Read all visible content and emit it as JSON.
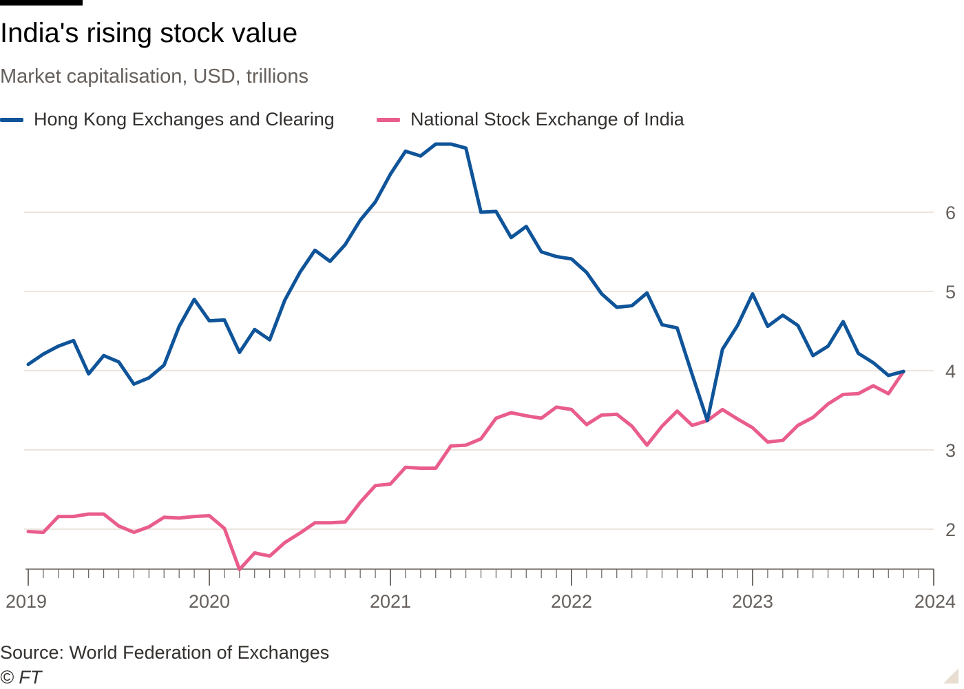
{
  "header": {
    "title": "India's rising stock value",
    "subtitle": "Market capitalisation, USD, trillions"
  },
  "footer": {
    "source": "Source: World Federation of Exchanges",
    "credit": "© FT"
  },
  "colors": {
    "hong_kong": "#0f5499",
    "india": "#e95d8c",
    "grid": "#e6dcd3",
    "axis": "#66605c",
    "text": "#33302e"
  },
  "chart_data": {
    "type": "line",
    "title": "India's rising stock value",
    "subtitle": "Market capitalisation, USD, trillions",
    "xlabel": "",
    "ylabel": "",
    "x_ticks": [
      "2019",
      "2020",
      "2021",
      "2022",
      "2023",
      "2024"
    ],
    "xlim": [
      2019.0,
      2024.0
    ],
    "ylim": [
      1.5,
      6.9
    ],
    "y_ticks": [
      2,
      3,
      4,
      5,
      6
    ],
    "y_tick_labels": [
      "2",
      "3",
      "4",
      "5",
      "6"
    ],
    "y_axis_side": "right",
    "grid": true,
    "legend_position": "top-left",
    "frequency": "monthly",
    "x_start": "2019-01",
    "series": [
      {
        "name": "Hong Kong Exchanges and Clearing",
        "color": "#0f5499",
        "values": [
          4.08,
          4.21,
          4.31,
          4.38,
          3.96,
          4.19,
          4.11,
          3.83,
          3.91,
          4.07,
          4.56,
          4.9,
          4.63,
          4.64,
          4.23,
          4.52,
          4.39,
          4.89,
          5.24,
          5.52,
          5.38,
          5.59,
          5.9,
          6.13,
          6.48,
          6.77,
          6.71,
          6.86,
          6.86,
          6.81,
          6.0,
          6.01,
          5.68,
          5.82,
          5.5,
          5.44,
          5.41,
          5.24,
          4.97,
          4.8,
          4.82,
          4.98,
          4.58,
          4.54,
          3.95,
          3.37,
          4.27,
          4.57,
          4.97,
          4.56,
          4.7,
          4.57,
          4.19,
          4.31,
          4.62,
          4.22,
          4.1,
          3.94,
          3.99
        ]
      },
      {
        "name": "National Stock Exchange of India",
        "color": "#e95d8c",
        "values": [
          1.97,
          1.96,
          2.16,
          2.16,
          2.19,
          2.19,
          2.04,
          1.96,
          2.03,
          2.15,
          2.14,
          2.16,
          2.17,
          2.01,
          1.49,
          1.7,
          1.66,
          1.83,
          1.95,
          2.08,
          2.08,
          2.09,
          2.34,
          2.55,
          2.57,
          2.78,
          2.77,
          2.77,
          3.05,
          3.06,
          3.14,
          3.4,
          3.47,
          3.43,
          3.4,
          3.54,
          3.51,
          3.32,
          3.44,
          3.45,
          3.3,
          3.06,
          3.3,
          3.49,
          3.31,
          3.37,
          3.51,
          3.39,
          3.28,
          3.1,
          3.12,
          3.31,
          3.41,
          3.58,
          3.7,
          3.71,
          3.81,
          3.71,
          3.99
        ]
      }
    ]
  }
}
